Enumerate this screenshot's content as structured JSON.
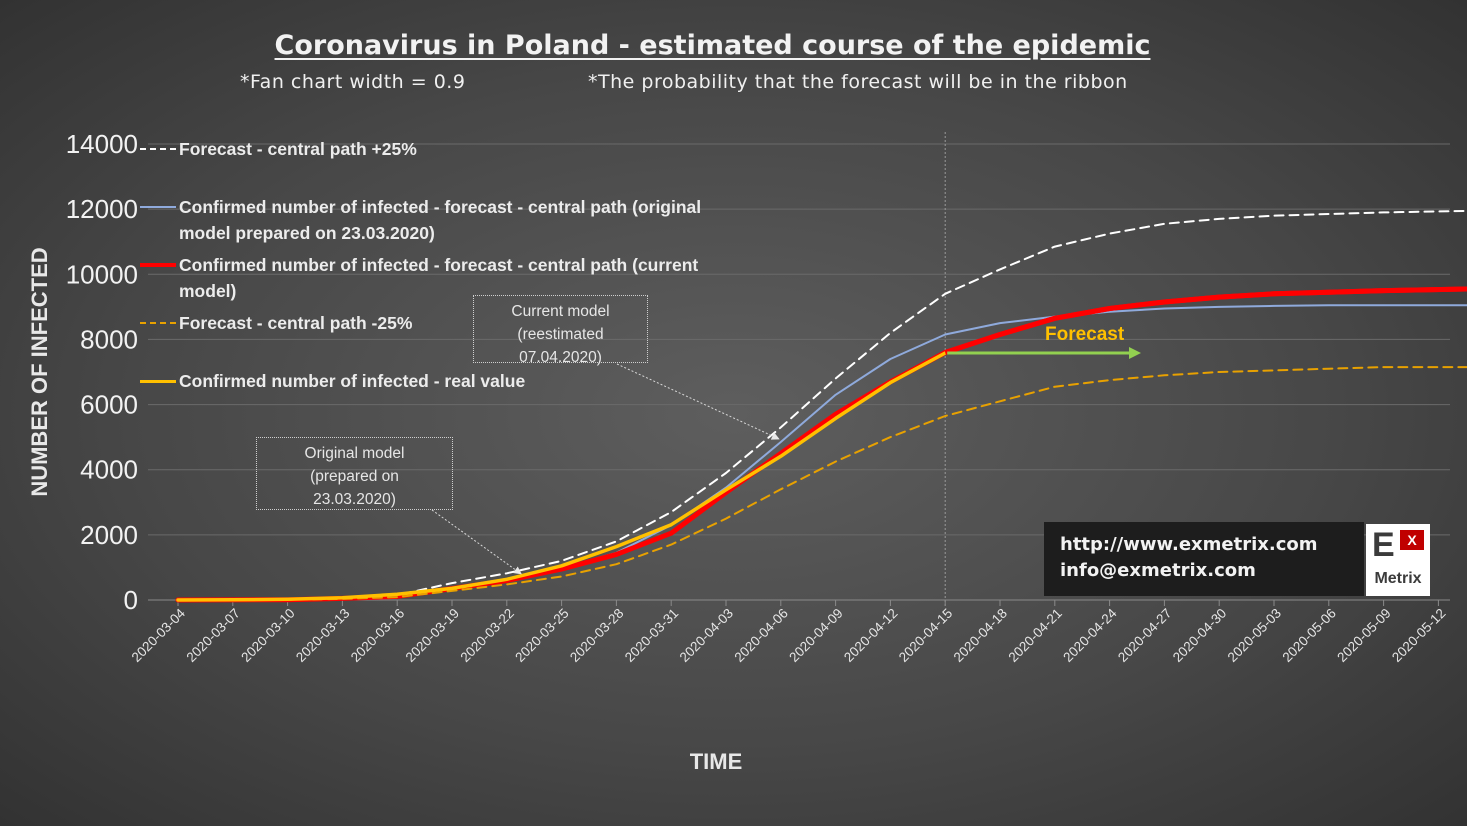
{
  "page": {
    "title": "Coronavirus  in Poland - estimated course of the epidemic",
    "subtitle_left": "*Fan chart width = 0.9",
    "subtitle_right": "*The probability that the forecast  will be in the ribbon"
  },
  "chart_data": {
    "type": "line",
    "xlabel": "TIME",
    "ylabel": "NUMBER OF INFECTED",
    "ylim": [
      0,
      14000
    ],
    "yticks": [
      0,
      2000,
      4000,
      6000,
      8000,
      10000,
      12000,
      14000
    ],
    "grid": "horizontal",
    "x_tick_labels": [
      "2020-03-04",
      "2020-03-07",
      "2020-03-10",
      "2020-03-13",
      "2020-03-16",
      "2020-03-19",
      "2020-03-22",
      "2020-03-25",
      "2020-03-28",
      "2020-03-31",
      "2020-04-03",
      "2020-04-06",
      "2020-04-09",
      "2020-04-12",
      "2020-04-15",
      "2020-04-18",
      "2020-04-21",
      "2020-04-24",
      "2020-04-27",
      "2020-04-30",
      "2020-05-03",
      "2020-05-06",
      "2020-05-09",
      "2020-05-12"
    ],
    "x_start": "2020-03-04",
    "x_end": "2020-05-14",
    "forecast_start": "2020-04-15",
    "series": [
      {
        "name": "Forecast - central path +25%",
        "color": "#ffffff",
        "style": "dashed",
        "points": [
          [
            "2020-03-04",
            0
          ],
          [
            "2020-03-10",
            10
          ],
          [
            "2020-03-13",
            60
          ],
          [
            "2020-03-16",
            150
          ],
          [
            "2020-03-19",
            520
          ],
          [
            "2020-03-22",
            820
          ],
          [
            "2020-03-25",
            1200
          ],
          [
            "2020-03-28",
            1800
          ],
          [
            "2020-03-31",
            2700
          ],
          [
            "2020-04-03",
            3900
          ],
          [
            "2020-04-06",
            5300
          ],
          [
            "2020-04-09",
            6800
          ],
          [
            "2020-04-12",
            8200
          ],
          [
            "2020-04-15",
            9400
          ],
          [
            "2020-04-18",
            10150
          ],
          [
            "2020-04-21",
            10850
          ],
          [
            "2020-04-24",
            11250
          ],
          [
            "2020-04-27",
            11550
          ],
          [
            "2020-04-30",
            11700
          ],
          [
            "2020-05-03",
            11800
          ],
          [
            "2020-05-06",
            11850
          ],
          [
            "2020-05-09",
            11900
          ],
          [
            "2020-05-14",
            11950
          ]
        ]
      },
      {
        "name": "Confirmed number of infected - forecast - central path (original model prepared on 23.03.2020)",
        "color": "#8faadc",
        "style": "solid",
        "points": [
          [
            "2020-03-04",
            0
          ],
          [
            "2020-03-10",
            10
          ],
          [
            "2020-03-13",
            50
          ],
          [
            "2020-03-16",
            120
          ],
          [
            "2020-03-19",
            380
          ],
          [
            "2020-03-22",
            650
          ],
          [
            "2020-03-25",
            970
          ],
          [
            "2020-03-28",
            1450
          ],
          [
            "2020-03-31",
            2300
          ],
          [
            "2020-04-03",
            3450
          ],
          [
            "2020-04-06",
            4850
          ],
          [
            "2020-04-09",
            6300
          ],
          [
            "2020-04-12",
            7400
          ],
          [
            "2020-04-15",
            8150
          ],
          [
            "2020-04-18",
            8500
          ],
          [
            "2020-04-21",
            8700
          ],
          [
            "2020-04-24",
            8850
          ],
          [
            "2020-04-27",
            8950
          ],
          [
            "2020-04-30",
            9000
          ],
          [
            "2020-05-03",
            9030
          ],
          [
            "2020-05-06",
            9050
          ],
          [
            "2020-05-09",
            9050
          ],
          [
            "2020-05-14",
            9050
          ]
        ]
      },
      {
        "name": "Confirmed number of infected - forecast - central path (current model)",
        "color": "#ff0000",
        "style": "solid",
        "points": [
          [
            "2020-03-04",
            0
          ],
          [
            "2020-03-10",
            10
          ],
          [
            "2020-03-13",
            50
          ],
          [
            "2020-03-16",
            110
          ],
          [
            "2020-03-19",
            350
          ],
          [
            "2020-03-22",
            600
          ],
          [
            "2020-03-25",
            950
          ],
          [
            "2020-03-28",
            1400
          ],
          [
            "2020-03-31",
            2050
          ],
          [
            "2020-04-03",
            3300
          ],
          [
            "2020-04-06",
            4500
          ],
          [
            "2020-04-09",
            5700
          ],
          [
            "2020-04-12",
            6700
          ],
          [
            "2020-04-15",
            7600
          ],
          [
            "2020-04-18",
            8150
          ],
          [
            "2020-04-21",
            8650
          ],
          [
            "2020-04-24",
            8950
          ],
          [
            "2020-04-27",
            9150
          ],
          [
            "2020-04-30",
            9300
          ],
          [
            "2020-05-03",
            9400
          ],
          [
            "2020-05-06",
            9450
          ],
          [
            "2020-05-09",
            9500
          ],
          [
            "2020-05-14",
            9550
          ]
        ]
      },
      {
        "name": "Forecast - central path  -25%",
        "color": "#e8a100",
        "style": "dashed",
        "points": [
          [
            "2020-03-04",
            0
          ],
          [
            "2020-03-10",
            8
          ],
          [
            "2020-03-13",
            35
          ],
          [
            "2020-03-16",
            90
          ],
          [
            "2020-03-19",
            280
          ],
          [
            "2020-03-22",
            480
          ],
          [
            "2020-03-25",
            720
          ],
          [
            "2020-03-28",
            1100
          ],
          [
            "2020-03-31",
            1700
          ],
          [
            "2020-04-03",
            2500
          ],
          [
            "2020-04-06",
            3400
          ],
          [
            "2020-04-09",
            4250
          ],
          [
            "2020-04-12",
            5000
          ],
          [
            "2020-04-15",
            5650
          ],
          [
            "2020-04-18",
            6100
          ],
          [
            "2020-04-21",
            6550
          ],
          [
            "2020-04-24",
            6750
          ],
          [
            "2020-04-27",
            6900
          ],
          [
            "2020-04-30",
            7000
          ],
          [
            "2020-05-03",
            7050
          ],
          [
            "2020-05-06",
            7100
          ],
          [
            "2020-05-09",
            7150
          ],
          [
            "2020-05-14",
            7150
          ]
        ]
      },
      {
        "name": "Confirmed number of infected - real value",
        "color": "#ffc000",
        "style": "solid",
        "points": [
          [
            "2020-03-04",
            1
          ],
          [
            "2020-03-07",
            5
          ],
          [
            "2020-03-10",
            22
          ],
          [
            "2020-03-13",
            68
          ],
          [
            "2020-03-16",
            177
          ],
          [
            "2020-03-19",
            355
          ],
          [
            "2020-03-22",
            634
          ],
          [
            "2020-03-25",
            1051
          ],
          [
            "2020-03-28",
            1638
          ],
          [
            "2020-03-31",
            2311
          ],
          [
            "2020-04-03",
            3383
          ],
          [
            "2020-04-06",
            4413
          ],
          [
            "2020-04-09",
            5575
          ],
          [
            "2020-04-12",
            6674
          ],
          [
            "2020-04-15",
            7582
          ]
        ]
      }
    ],
    "annotations": [
      {
        "text": "Current model\n(reestimated\n07.04.2020)",
        "target": [
          "2020-04-06",
          4700
        ]
      },
      {
        "text": "Original model\n(prepared on\n23.03.2020)",
        "target": [
          "2020-03-23",
          620
        ]
      },
      {
        "text": "Forecast",
        "color": "#ffc000"
      }
    ],
    "forecast_arrow": {
      "color": "#92d050"
    }
  },
  "contact": {
    "url": "http://www.exmetrix.com",
    "email": "info@exmetrix.com"
  },
  "logo": {
    "letter": "E",
    "superscript": "X",
    "word": "Metrix"
  }
}
